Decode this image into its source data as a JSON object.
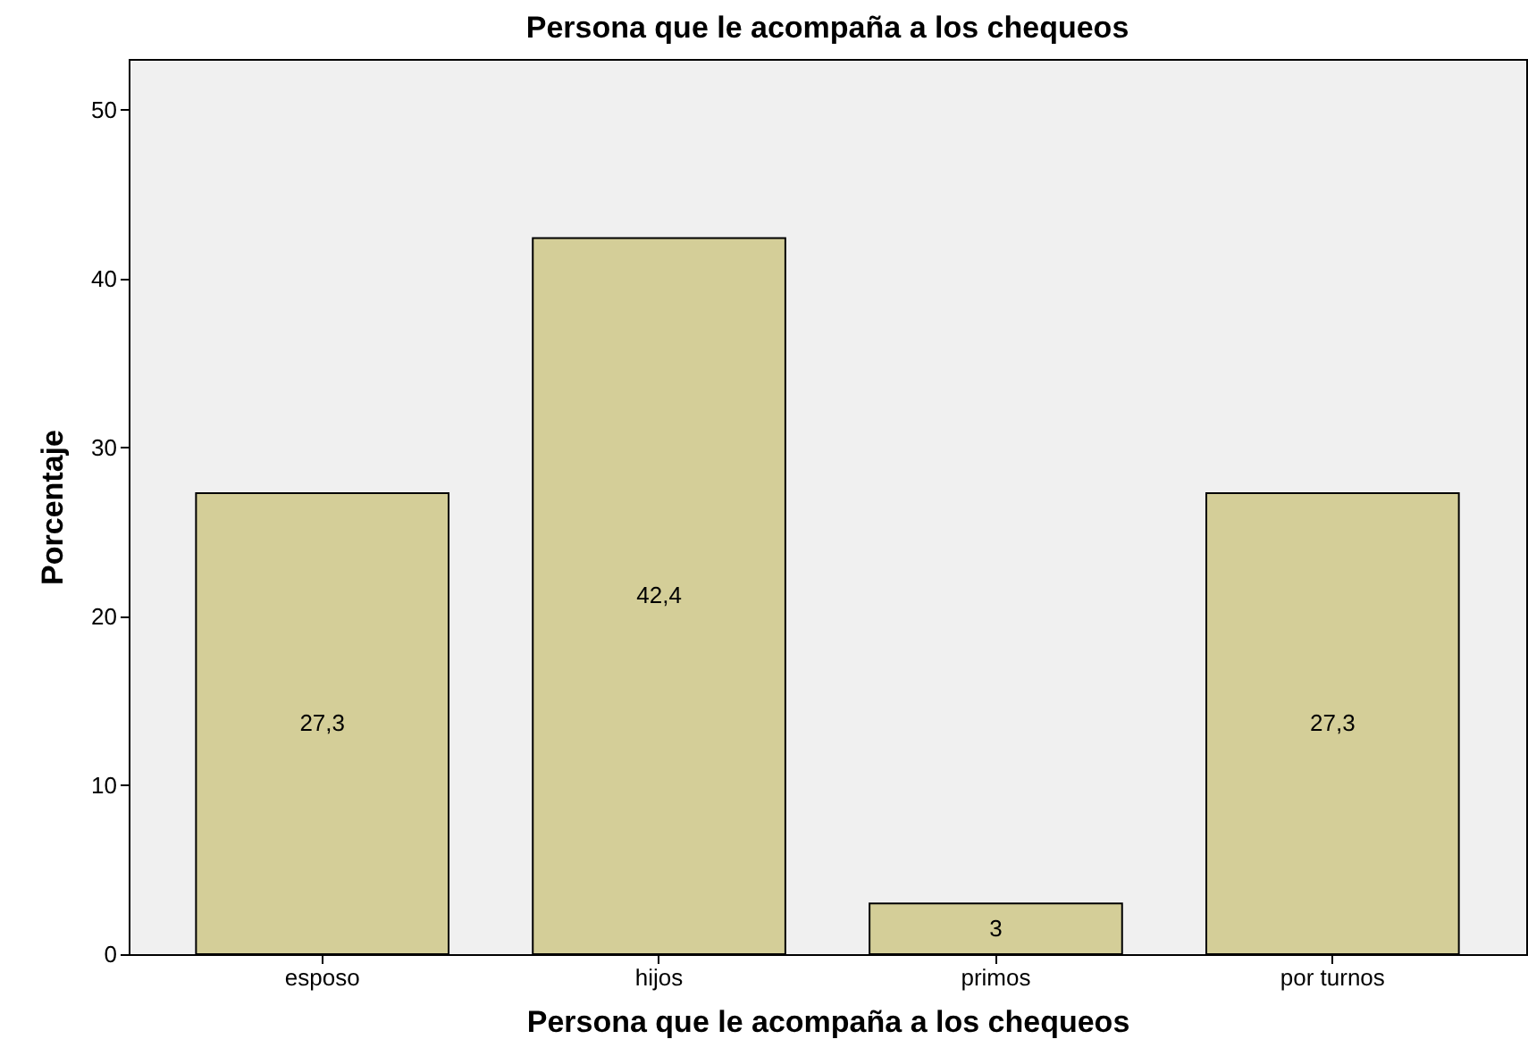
{
  "chart_data": {
    "type": "bar",
    "title": "Persona que le acompaña a los chequeos",
    "xlabel": "Persona que le acompaña a los chequeos",
    "ylabel": "Porcentaje",
    "categories": [
      "esposo",
      "hijos",
      "primos",
      "por turnos"
    ],
    "values": [
      27.3,
      42.4,
      3,
      27.3
    ],
    "value_labels": [
      "27,3",
      "42,4",
      "3",
      "27,3"
    ],
    "color": "#d4ce98",
    "ylim": [
      0,
      53
    ],
    "yticks": [
      0,
      10,
      20,
      30,
      40,
      50
    ],
    "grid": false
  }
}
